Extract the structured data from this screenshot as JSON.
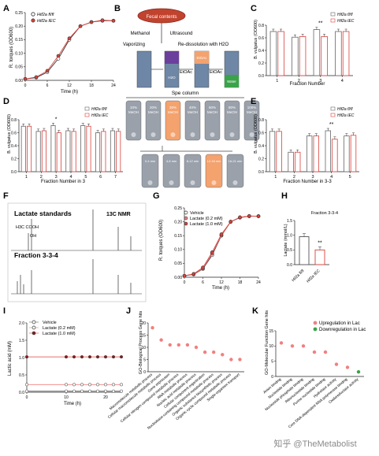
{
  "panels": {
    "A": {
      "letter": "A",
      "legend": [
        "Hif2a fl/fl",
        "Hif2a IEC"
      ],
      "ylabel": "R. torques (OD600)",
      "xlabel": "Time (h)",
      "xticks": [
        "0",
        "6",
        "12",
        "18",
        "24"
      ],
      "yticks": [
        "0.00",
        "0.05",
        "0.10",
        "0.15",
        "0.20",
        "0.25"
      ]
    },
    "B": {
      "letter": "B",
      "fecal_label": "Fecal contents",
      "step1": "Methanol",
      "step2": "Ultrasound",
      "vaporizing": "Vaporizing",
      "redissolve": "Re-dissolution with H2O",
      "extract1": "EtOAc",
      "extract2": "EtOAc",
      "layer_etoac": "EtOAc",
      "layer_h2o": "H2O",
      "layer_water": "Water",
      "column_label": "Spe column",
      "fractions": [
        "10% MeOH",
        "20% MeOH",
        "30% MeOH",
        "40% MeOH",
        "60% MeOH",
        "80% MeOH",
        "100% MeOH"
      ],
      "subfractions": [
        "0-4 min",
        "4-8 min",
        "8-12 min",
        "12-16 min",
        "16-21 min"
      ]
    },
    "C": {
      "letter": "C",
      "legend": [
        "Hif2a fl/fl",
        "Hif2a IEC"
      ],
      "ylabel": "B. vulgatus (OD600)",
      "xlabel": "Fraction Number",
      "categories": [
        "1",
        "2",
        "3",
        "4"
      ],
      "yticks": [
        "0.0",
        "0.2",
        "0.4",
        "0.6",
        "0.8"
      ],
      "sig": "**"
    },
    "D": {
      "letter": "D",
      "legend": [
        "Hif2a fl/fl",
        "Hif2a IEC"
      ],
      "ylabel": "B. vulgatus (OD600)",
      "xlabel": "Fraction Number in 3",
      "categories": [
        "1",
        "2",
        "3",
        "4",
        "5",
        "6",
        "7"
      ],
      "yticks": [
        "0.0",
        "0.2",
        "0.4",
        "0.6",
        "0.8"
      ],
      "sig": "*"
    },
    "E": {
      "letter": "E",
      "legend": [
        "Hif2a fl/fl",
        "Hif2a IEC"
      ],
      "ylabel": "B. vulgatus (OD600)",
      "xlabel": "Fraction Number in 3-3",
      "categories": [
        "1",
        "2",
        "3",
        "4",
        "5"
      ],
      "yticks": [
        "0.0",
        "0.2",
        "0.4",
        "0.6",
        "0.8"
      ],
      "sig": "**"
    },
    "F": {
      "letter": "F",
      "title1": "Lactate standards",
      "nmr": "13C NMR",
      "structure": "H3C   COOH",
      "structure2": "OH",
      "title2": "Fraction 3-3-4"
    },
    "G": {
      "letter": "G",
      "legend": [
        "Vehicle",
        "Lactate (0.2 mM)",
        "Lactate (1.0 mM)"
      ],
      "ylabel": "R. torques (OD600)",
      "xlabel": "Time (h)",
      "xticks": [
        "0",
        "6",
        "12",
        "18",
        "24"
      ],
      "yticks": [
        "0.00",
        "0.05",
        "0.10",
        "0.15",
        "0.20",
        "0.25"
      ]
    },
    "H": {
      "letter": "H",
      "title": "Fraction 3-3-4",
      "ylabel": "Lactate (mmol/L)",
      "categories": [
        "Hif2a fl/fl",
        "Hif2a IEC"
      ],
      "yticks": [
        "0.0",
        "0.5",
        "1.0",
        "1.5"
      ],
      "sig": "**"
    },
    "I": {
      "letter": "I",
      "legend": [
        "Vehicle",
        "Lactate (0.2 mM)",
        "Lactate (1.0 mM)"
      ],
      "ylabel": "Lactic acid (mM)",
      "xlabel": "Time (h)",
      "xticks": [
        "0",
        "10",
        "20"
      ],
      "yticks": [
        "0.0",
        "0.5",
        "1.0",
        "1.5",
        "2.0"
      ]
    },
    "J": {
      "letter": "J",
      "ylabel": "GO-Biological Process Gene hits",
      "yticks": [
        "0",
        "5",
        "10",
        "15",
        "20"
      ],
      "terms": [
        "Macromolecule metabolic process",
        "Cellular macromolecule metabolic process",
        "Gene expression",
        "Cellular nitrogen compound metabolic process",
        "RNA metabolic process",
        "Nucleic acid metabolic process",
        "Cellular component organization",
        "Nucleobase-containing compound metabolic process",
        "Organic substance biosynthetic process",
        "Organic cyclic compound metabolic process",
        "Single-organism transport"
      ]
    },
    "K": {
      "letter": "K",
      "ylabel": "GO-Molecular Function Gene hits",
      "legend": [
        "Upregulation in Lac",
        "Downregulation in Lac"
      ],
      "yticks": [
        "0",
        "5",
        "10",
        "15"
      ],
      "terms": [
        "Anion binding",
        "Nucleotide binding",
        "Nucleoside phosphate binding",
        "Ribonucleotide binding",
        "Purine nucleotide binding",
        "Hydrolase activity",
        "Core DNA-dependent RNA polymerase binding",
        "Oxidoreductase activity"
      ]
    }
  },
  "watermark": "知乎 @TheMetabolist",
  "colors": {
    "accent_red": "#d9413b",
    "pink": "#f08080",
    "orange": "#f4a26e",
    "green": "#3aa34a",
    "gray": "#8f97a3"
  },
  "chart_data": [
    {
      "panel": "A",
      "type": "line",
      "title": "",
      "xlabel": "Time (h)",
      "ylabel": "R. torques (OD600)",
      "xlim": [
        0,
        24
      ],
      "ylim": [
        0,
        0.25
      ],
      "x": [
        0,
        3,
        6,
        9,
        12,
        15,
        18,
        21,
        24
      ],
      "series": [
        {
          "name": "Hif2a fl/fl",
          "values": [
            0.005,
            0.01,
            0.03,
            0.08,
            0.15,
            0.2,
            0.215,
            0.22,
            0.22
          ]
        },
        {
          "name": "Hif2a IEC",
          "values": [
            0.005,
            0.012,
            0.035,
            0.09,
            0.155,
            0.2,
            0.215,
            0.222,
            0.22
          ]
        }
      ]
    },
    {
      "panel": "C",
      "type": "bar",
      "title": "",
      "xlabel": "Fraction Number",
      "ylabel": "B. vulgatus (OD600)",
      "ylim": [
        0,
        0.8
      ],
      "categories": [
        "1",
        "2",
        "3",
        "4"
      ],
      "series": [
        {
          "name": "Hif2a fl/fl",
          "values": [
            0.7,
            0.61,
            0.73,
            0.7
          ]
        },
        {
          "name": "Hif2a IEC",
          "values": [
            0.7,
            0.62,
            0.62,
            0.7
          ]
        }
      ]
    },
    {
      "panel": "D",
      "type": "bar",
      "title": "",
      "xlabel": "Fraction Number in 3",
      "ylabel": "B. vulgatus (OD600)",
      "ylim": [
        0,
        0.8
      ],
      "categories": [
        "1",
        "2",
        "3",
        "4",
        "5",
        "6",
        "7"
      ],
      "series": [
        {
          "name": "Hif2a fl/fl",
          "values": [
            0.7,
            0.62,
            0.71,
            0.63,
            0.71,
            0.6,
            0.63
          ]
        },
        {
          "name": "Hif2a IEC",
          "values": [
            0.7,
            0.63,
            0.6,
            0.62,
            0.7,
            0.62,
            0.62
          ]
        }
      ]
    },
    {
      "panel": "E",
      "type": "bar",
      "title": "",
      "xlabel": "Fraction Number in 3-3",
      "ylabel": "B. vulgatus (OD600)",
      "ylim": [
        0,
        0.8
      ],
      "categories": [
        "1",
        "2",
        "3",
        "4",
        "5"
      ],
      "series": [
        {
          "name": "Hif2a fl/fl",
          "values": [
            0.62,
            0.3,
            0.55,
            0.63,
            0.55
          ]
        },
        {
          "name": "Hif2a IEC",
          "values": [
            0.62,
            0.3,
            0.55,
            0.5,
            0.56
          ]
        }
      ]
    },
    {
      "panel": "G",
      "type": "line",
      "title": "",
      "xlabel": "Time (h)",
      "ylabel": "R. torques (OD600)",
      "xlim": [
        0,
        24
      ],
      "ylim": [
        0,
        0.25
      ],
      "x": [
        0,
        3,
        6,
        9,
        12,
        15,
        18,
        21,
        24
      ],
      "series": [
        {
          "name": "Vehicle",
          "values": [
            0.005,
            0.01,
            0.03,
            0.08,
            0.15,
            0.2,
            0.215,
            0.22,
            0.22
          ]
        },
        {
          "name": "Lactate (0.2 mM)",
          "values": [
            0.005,
            0.011,
            0.032,
            0.085,
            0.152,
            0.2,
            0.216,
            0.22,
            0.22
          ]
        },
        {
          "name": "Lactate (1.0 mM)",
          "values": [
            0.005,
            0.012,
            0.035,
            0.09,
            0.155,
            0.2,
            0.216,
            0.221,
            0.22
          ]
        }
      ]
    },
    {
      "panel": "H",
      "type": "bar",
      "title": "Fraction 3-3-4",
      "ylabel": "Lactate (mmol/L)",
      "ylim": [
        0,
        1.5
      ],
      "categories": [
        "Hif2a fl/fl",
        "Hif2a IEC"
      ],
      "values": [
        0.95,
        0.5
      ]
    },
    {
      "panel": "I",
      "type": "line",
      "title": "",
      "xlabel": "Time (h)",
      "ylabel": "Lactic acid (mM)",
      "xlim": [
        0,
        24
      ],
      "ylim": [
        0,
        2.0
      ],
      "x": [
        0,
        10,
        12,
        14,
        16,
        18,
        20,
        22,
        24
      ],
      "series": [
        {
          "name": "Vehicle",
          "values": [
            0.03,
            0.03,
            0.03,
            0.03,
            0.03,
            0.03,
            0.03,
            0.03,
            0.03
          ]
        },
        {
          "name": "Lactate (0.2 mM)",
          "values": [
            0.22,
            0.22,
            0.22,
            0.22,
            0.22,
            0.22,
            0.22,
            0.22,
            0.22
          ]
        },
        {
          "name": "Lactate (1.0 mM)",
          "values": [
            1.02,
            1.02,
            1.02,
            1.02,
            1.02,
            1.02,
            1.02,
            1.02,
            1.02
          ]
        }
      ]
    },
    {
      "panel": "J",
      "type": "scatter",
      "title": "",
      "ylabel": "GO-Biological Process Gene hits",
      "ylim": [
        0,
        20
      ],
      "categories": [
        "Macromolecule metabolic process",
        "Cellular macromolecule metabolic process",
        "Gene expression",
        "Cellular nitrogen compound metabolic process",
        "RNA metabolic process",
        "Nucleic acid metabolic process",
        "Cellular component organization",
        "Nucleobase-containing compound metabolic process",
        "Organic substance biosynthetic process",
        "Organic cyclic compound metabolic process",
        "Single-organism transport"
      ],
      "values": [
        18,
        13,
        11,
        11,
        11,
        10,
        8,
        8,
        7,
        5,
        5
      ]
    },
    {
      "panel": "K",
      "type": "scatter",
      "title": "",
      "ylabel": "GO-Molecular Function Gene hits",
      "ylim": [
        0,
        15
      ],
      "categories": [
        "Anion binding",
        "Nucleotide binding",
        "Nucleoside phosphate binding",
        "Ribonucleotide binding",
        "Purine nucleotide binding",
        "Hydrolase activity",
        "Core DNA-dependent RNA polymerase binding",
        "Oxidoreductase activity"
      ],
      "series": [
        {
          "name": "Upregulation in Lac",
          "values": [
            11,
            10,
            10,
            8,
            8,
            4,
            3,
            null
          ]
        },
        {
          "name": "Downregulation in Lac",
          "values": [
            null,
            null,
            null,
            null,
            null,
            null,
            null,
            1.5
          ]
        }
      ]
    }
  ]
}
